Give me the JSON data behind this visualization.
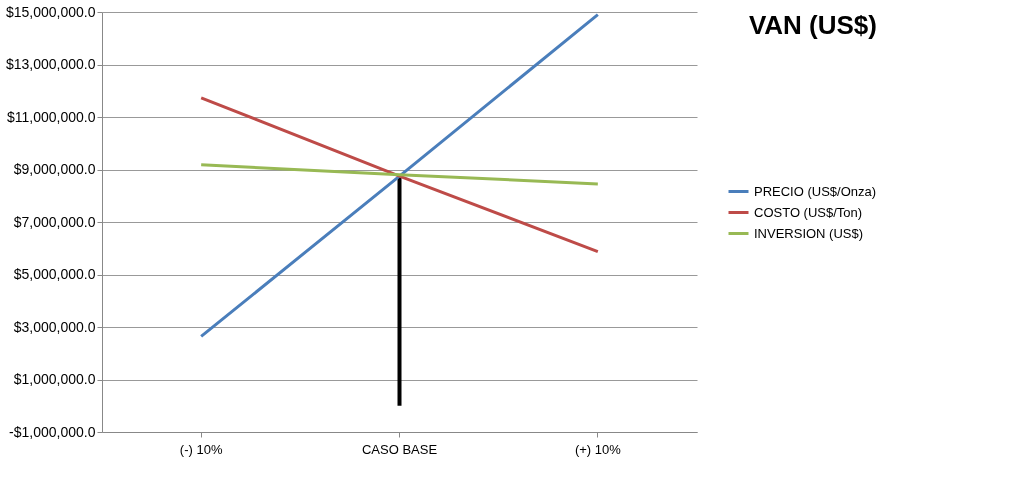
{
  "chart_data": {
    "type": "line",
    "title": "VAN (US$)",
    "categories": [
      "(-) 10%",
      "CASO BASE",
      "(+) 10%"
    ],
    "series": [
      {
        "name": "PRECIO (US$/Onza)",
        "color": "#4a7ebb",
        "values": [
          2640000,
          8750000,
          14900000
        ]
      },
      {
        "name": "COSTO (US$/Ton)",
        "color": "#be4b48",
        "values": [
          11730000,
          8750000,
          5870000
        ]
      },
      {
        "name": "INVERSION (US$)",
        "color": "#98b954",
        "values": [
          9180000,
          8800000,
          8450000
        ]
      },
      {
        "type": "bar",
        "color": "#000000",
        "values": [
          null,
          8750000,
          null
        ]
      }
    ],
    "ylim": [
      -1000000,
      15000000
    ],
    "yticks": [
      {
        "value": -1000000,
        "label": "-$1,000,000.0"
      },
      {
        "value": 1000000,
        "label": "$1,000,000.0"
      },
      {
        "value": 3000000,
        "label": "$3,000,000.0"
      },
      {
        "value": 5000000,
        "label": "$5,000,000.0"
      },
      {
        "value": 7000000,
        "label": "$7,000,000.0"
      },
      {
        "value": 9000000,
        "label": "$9,000,000.0"
      },
      {
        "value": 11000000,
        "label": "$11,000,000.0"
      },
      {
        "value": 13000000,
        "label": "$13,000,000.0"
      },
      {
        "value": 15000000,
        "label": "$15,000,000.0"
      }
    ],
    "grid": "y",
    "legend": "right",
    "marker": "none",
    "line_style": "solid"
  }
}
